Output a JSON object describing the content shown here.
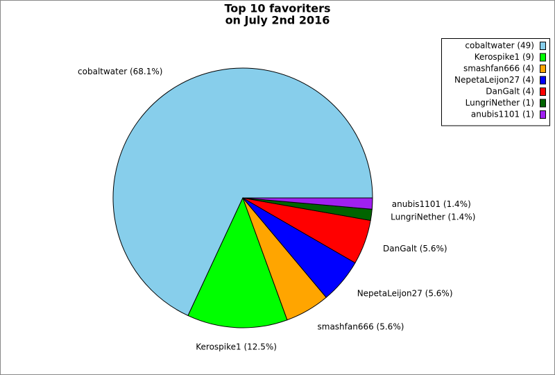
{
  "chart_data": {
    "type": "pie",
    "title": [
      "Top 10 favoriters",
      "on July 2nd 2016"
    ],
    "categories": [
      "cobaltwater (49)",
      "Kerospike1 (9)",
      "smashfan666 (4)",
      "NepetaLeijon27 (4)",
      "DanGalt (4)",
      "LungriNether (1)",
      "anubis1101 (1)"
    ],
    "values": [
      49,
      9,
      4,
      4,
      4,
      1,
      1
    ],
    "slice_labels": [
      "cobaltwater (68.1%)",
      "Kerospike1 (12.5%)",
      "smashfan666 (5.6%)",
      "NepetaLeijon27 (5.6%)",
      "DanGalt (5.6%)",
      "LungriNether (1.4%)",
      "anubis1101 (1.4%)"
    ],
    "colors": [
      "#87ceeb",
      "#00ff00",
      "#ffa500",
      "#0000ff",
      "#ff0000",
      "#006400",
      "#a020f0"
    ],
    "legend": "top-right"
  }
}
